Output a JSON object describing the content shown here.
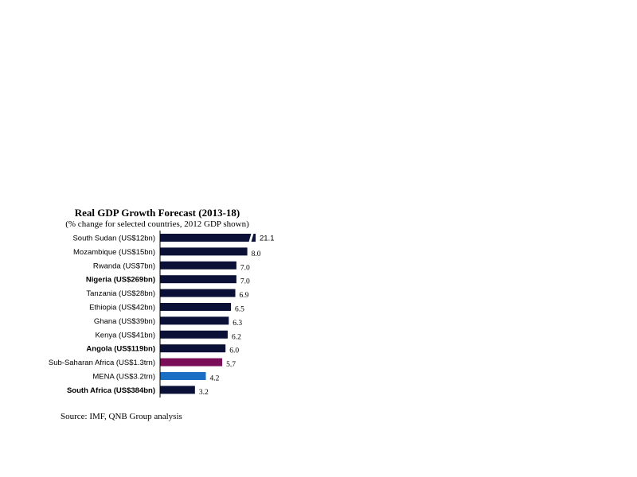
{
  "chart_data": {
    "type": "bar",
    "orientation": "horizontal",
    "title": "Real GDP Growth Forecast (2013-18)",
    "subtitle": "(% change for selected countries, 2012 GDP shown)",
    "categories": [
      "South Sudan (US$12bn)",
      "Mozambique (US$15bn)",
      "Rwanda (US$7bn)",
      "Nigeria (US$269bn)",
      "Tanzania (US$28bn)",
      "Ethiopia (US$42bn)",
      "Ghana (US$39bn)",
      "Kenya (US$41bn)",
      "Angola (US$119bn)",
      "Sub-Saharan Africa (US$1.3trn)",
      "MENA (US$3.2trn)",
      "South Africa (US$384bn)"
    ],
    "values": [
      21.1,
      8.0,
      7.0,
      7.0,
      6.9,
      6.5,
      6.3,
      6.2,
      6.0,
      5.7,
      4.2,
      3.2
    ],
    "value_labels": [
      "21.1",
      "8.0",
      "7.0",
      "7.0",
      "6.9",
      "6.5",
      "6.3",
      "6.2",
      "6.0",
      "5.7",
      "4.2",
      "3.2"
    ],
    "bold_categories": [
      "Nigeria (US$269bn)",
      "Angola (US$119bn)",
      "South Africa (US$384bn)"
    ],
    "broken_axis_categories": [
      "South Sudan (US$12bn)"
    ],
    "bar_colors": [
      "#0b1136",
      "#0b1136",
      "#0b1136",
      "#0b1136",
      "#0b1136",
      "#0b1136",
      "#0b1136",
      "#0b1136",
      "#0b1136",
      "#7a0d58",
      "#1a6ec4",
      "#0b1136"
    ],
    "grid": false,
    "legend": "none"
  },
  "source": "Source: IMF, QNB Group analysis"
}
